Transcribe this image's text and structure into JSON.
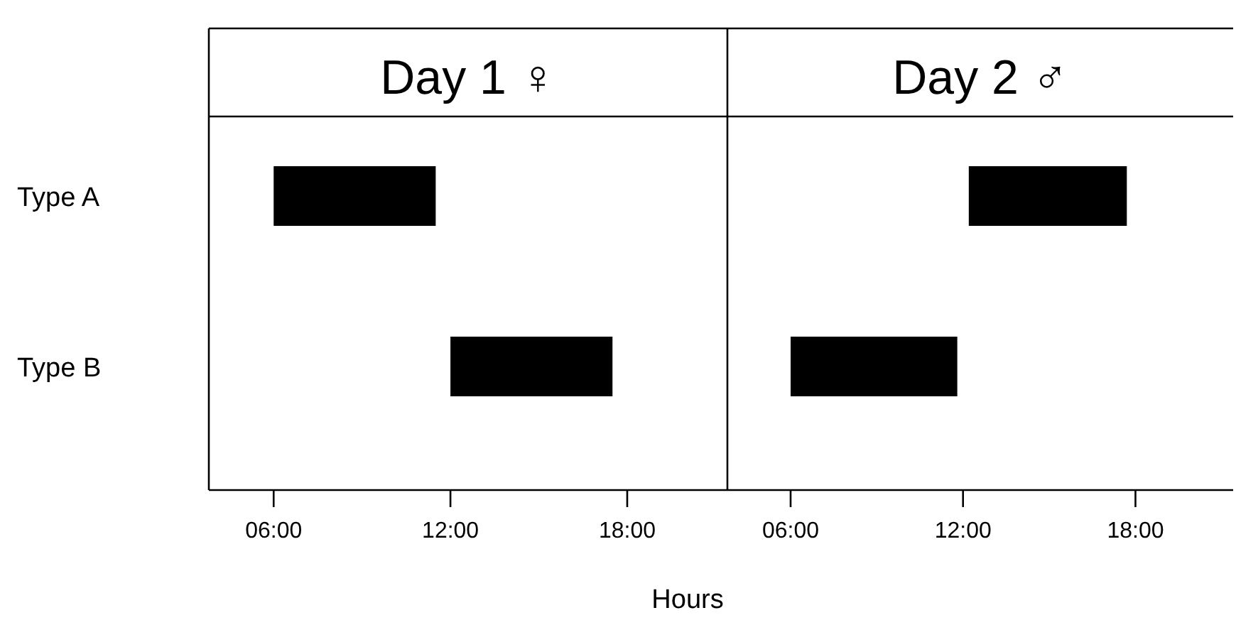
{
  "chart_data": [
    {
      "type": "bar",
      "orientation": "horizontal",
      "title": "Day 1 ♀",
      "xlabel": "Hours",
      "categories": [
        "Type A",
        "Type B"
      ],
      "base": [
        6,
        12
      ],
      "values": [
        5.5,
        5.5
      ],
      "color": "#000000",
      "xlim": [
        3.8,
        21.4
      ],
      "xticks": [
        {
          "value": 6,
          "label": "06:00"
        },
        {
          "value": 12,
          "label": "12:00"
        },
        {
          "value": 18,
          "label": "18:00"
        }
      ]
    },
    {
      "type": "bar",
      "orientation": "horizontal",
      "title": "Day 2 ♂",
      "categories": [
        null,
        null
      ],
      "base": [
        12.2,
        6
      ],
      "values": [
        5.5,
        5.8
      ],
      "color": "#000000",
      "xlim": [
        3.8,
        21.4
      ],
      "xticks": [
        {
          "value": 6,
          "label": "06:00"
        },
        {
          "value": 12,
          "label": "12:00"
        },
        {
          "value": 18,
          "label": "18:00"
        }
      ],
      "tick_labels": "x"
    }
  ]
}
